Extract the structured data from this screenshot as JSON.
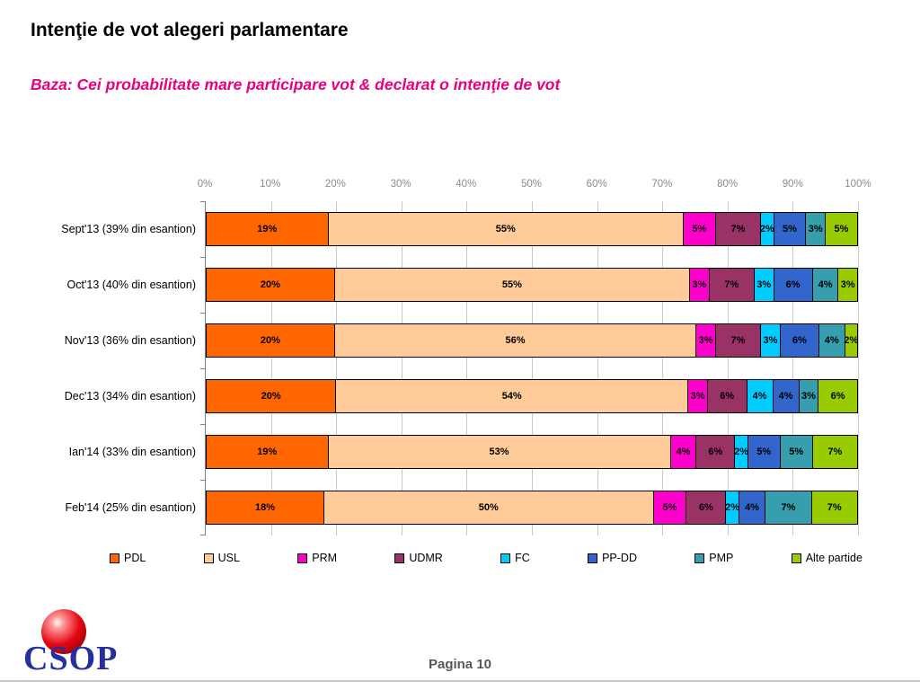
{
  "page": {
    "title": "Intenţie de vot alegeri parlamentare",
    "subtitle": "Baza: Cei probabilitate mare participare vot & declarat o intenţie de vot",
    "footer_page_label": "Pagina 10",
    "logo_text": "CSOP"
  },
  "colors": {
    "subtitle_accent": "#E8007D",
    "axis_label": "#8C8C8C",
    "gridline": "#C9C9C9"
  },
  "chart_data": {
    "type": "bar",
    "orientation": "horizontal",
    "stacked": true,
    "title": "",
    "xlabel": "",
    "ylabel": "",
    "xlim": [
      0,
      100
    ],
    "grid": true,
    "legend_position": "bottom",
    "value_suffix": "%",
    "x_ticks": [
      "0%",
      "10%",
      "20%",
      "30%",
      "40%",
      "50%",
      "60%",
      "70%",
      "80%",
      "90%",
      "100%"
    ],
    "categories": [
      "Sept'13 (39% din esantion)",
      "Oct'13 (40% din esantion)",
      "Nov'13 (36% din esantion)",
      "Dec'13 (34% din esantion)",
      "Ian'14 (33% din esantion)",
      "Feb'14 (25% din esantion)"
    ],
    "series": [
      {
        "name": "PDL",
        "color": "#FF6600",
        "values": [
          19,
          20,
          20,
          20,
          19,
          18
        ]
      },
      {
        "name": "USL",
        "color": "#FFCC99",
        "values": [
          55,
          55,
          56,
          54,
          53,
          50
        ]
      },
      {
        "name": "PRM",
        "color": "#FF00CC",
        "values": [
          5,
          3,
          3,
          3,
          4,
          5
        ]
      },
      {
        "name": "UDMR",
        "color": "#993366",
        "values": [
          7,
          7,
          7,
          6,
          6,
          6
        ]
      },
      {
        "name": "FC",
        "color": "#00CCFF",
        "values": [
          2,
          3,
          3,
          4,
          2,
          2
        ]
      },
      {
        "name": "PP-DD",
        "color": "#3366CC",
        "values": [
          5,
          6,
          6,
          4,
          5,
          4
        ]
      },
      {
        "name": "PMP",
        "color": "#369EAD",
        "values": [
          3,
          4,
          4,
          3,
          5,
          7
        ]
      },
      {
        "name": "Alte partide",
        "color": "#99CC00",
        "values": [
          5,
          3,
          2,
          6,
          7,
          7
        ]
      }
    ]
  }
}
